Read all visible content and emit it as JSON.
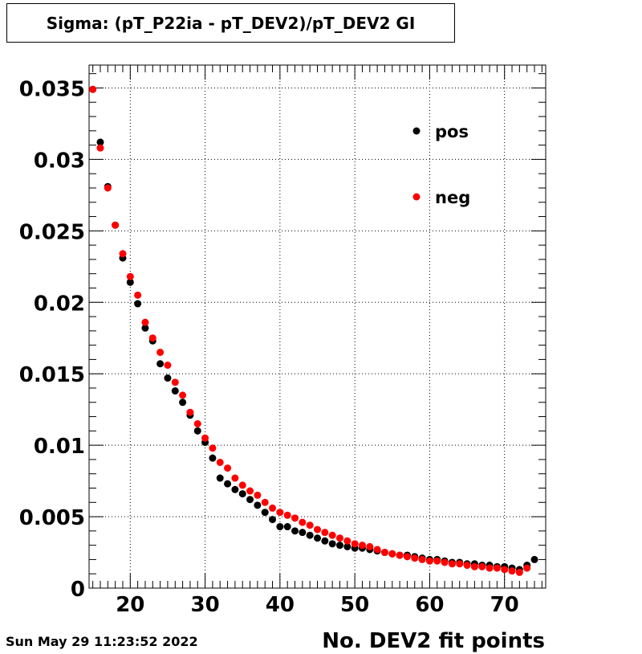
{
  "chart_data": {
    "type": "scatter",
    "title": "Sigma: (pT_P22ia - pT_DEV2)/pT_DEV2 GI",
    "xlabel": "No. DEV2 fit points",
    "ylabel": "",
    "xlim": [
      14.5,
      75.5
    ],
    "ylim": [
      0,
      0.0366
    ],
    "x_ticks": [
      20,
      30,
      40,
      50,
      60,
      70
    ],
    "x_tick_labels": [
      "20",
      "30",
      "40",
      "50",
      "60",
      "70"
    ],
    "y_ticks": [
      0,
      0.005,
      0.01,
      0.015,
      0.02,
      0.025,
      0.03,
      0.035
    ],
    "y_tick_labels": [
      "0",
      "0.005",
      "0.01",
      "0.015",
      "0.02",
      "0.025",
      "0.03",
      "0.035"
    ],
    "grid": true,
    "legend_position": "top-right",
    "series": [
      {
        "name": "pos",
        "color": "#000000",
        "x": [
          15,
          16,
          17,
          18,
          19,
          20,
          21,
          22,
          23,
          24,
          25,
          26,
          27,
          28,
          29,
          30,
          31,
          32,
          33,
          34,
          35,
          36,
          37,
          38,
          39,
          40,
          41,
          42,
          43,
          44,
          45,
          46,
          47,
          48,
          49,
          50,
          51,
          52,
          53,
          54,
          55,
          56,
          57,
          58,
          59,
          60,
          61,
          62,
          63,
          64,
          65,
          66,
          67,
          68,
          69,
          70,
          71,
          72,
          73,
          74
        ],
        "y": [
          0.0349,
          0.0312,
          0.0281,
          0.0254,
          0.0231,
          0.0214,
          0.0199,
          0.0182,
          0.0173,
          0.0157,
          0.0147,
          0.0138,
          0.013,
          0.0121,
          0.011,
          0.0102,
          0.0091,
          0.0077,
          0.0073,
          0.0069,
          0.0066,
          0.0062,
          0.0058,
          0.0053,
          0.0048,
          0.0043,
          0.0043,
          0.004,
          0.0039,
          0.0037,
          0.0035,
          0.0033,
          0.0031,
          0.003,
          0.0029,
          0.0028,
          0.0028,
          0.0027,
          0.0026,
          0.0025,
          0.0024,
          0.0023,
          0.0023,
          0.0022,
          0.0021,
          0.002,
          0.002,
          0.0019,
          0.0018,
          0.0018,
          0.0017,
          0.0017,
          0.0016,
          0.0016,
          0.0015,
          0.0015,
          0.0014,
          0.0013,
          0.0016,
          0.002
        ]
      },
      {
        "name": "neg",
        "color": "#ff0000",
        "x": [
          15,
          16,
          17,
          18,
          19,
          20,
          21,
          22,
          23,
          24,
          25,
          26,
          27,
          28,
          29,
          30,
          31,
          32,
          33,
          34,
          35,
          36,
          37,
          38,
          39,
          40,
          41,
          42,
          43,
          44,
          45,
          46,
          47,
          48,
          49,
          50,
          51,
          52,
          53,
          54,
          55,
          56,
          57,
          58,
          59,
          60,
          61,
          62,
          63,
          64,
          65,
          66,
          67,
          68,
          69,
          70,
          71,
          72,
          73
        ],
        "y": [
          0.0349,
          0.0308,
          0.028,
          0.0254,
          0.0234,
          0.0218,
          0.0205,
          0.0186,
          0.0175,
          0.0165,
          0.0156,
          0.0144,
          0.0135,
          0.0123,
          0.0115,
          0.0105,
          0.0098,
          0.0088,
          0.0084,
          0.0077,
          0.0072,
          0.0068,
          0.0065,
          0.006,
          0.0056,
          0.0053,
          0.0051,
          0.0049,
          0.0046,
          0.0044,
          0.0041,
          0.0039,
          0.0037,
          0.0035,
          0.0033,
          0.0031,
          0.003,
          0.0029,
          0.0027,
          0.0025,
          0.0024,
          0.0023,
          0.0022,
          0.0021,
          0.002,
          0.0019,
          0.0019,
          0.0018,
          0.0017,
          0.0017,
          0.0016,
          0.0015,
          0.0015,
          0.0014,
          0.0014,
          0.0013,
          0.0012,
          0.0011,
          0.0014
        ]
      }
    ]
  },
  "footer": {
    "datestamp": "Sun May 29 11:23:52 2022"
  }
}
